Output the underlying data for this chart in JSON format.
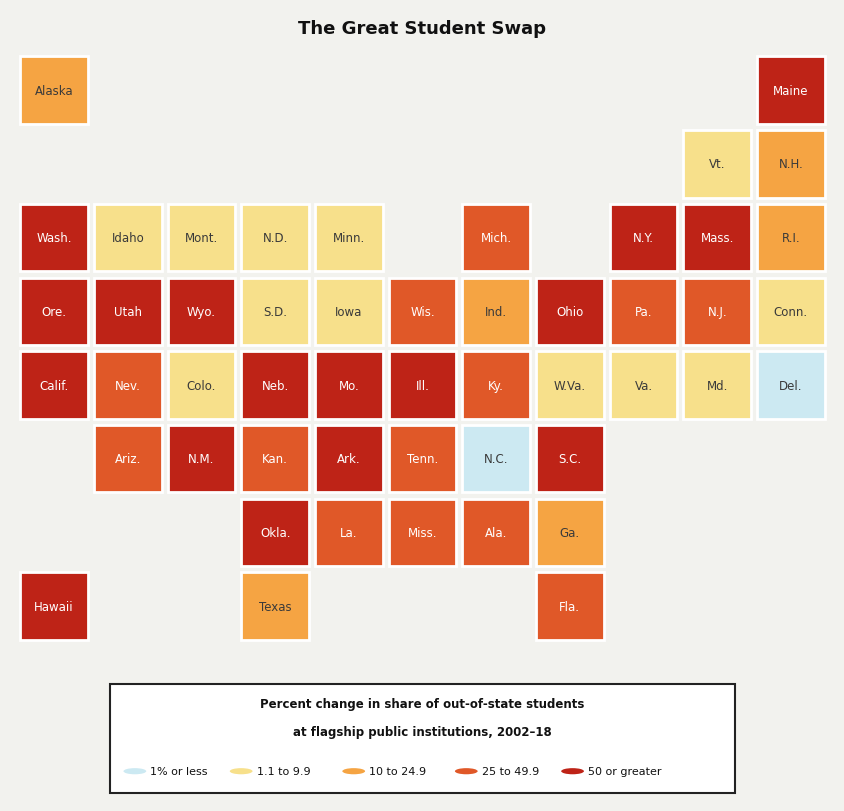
{
  "title": "The Great Student Swap",
  "title_fontsize": 13,
  "legend_title_line1": "Percent change in share of out-of-state students",
  "legend_title_line2": "at flagship public institutions, 2002–18",
  "legend_items": [
    {
      "label": "1% or less",
      "color": "#cce9f2"
    },
    {
      "label": "1.1 to 9.9",
      "color": "#f7e08b"
    },
    {
      "label": "10 to 24.9",
      "color": "#f5a443"
    },
    {
      "label": "25 to 49.9",
      "color": "#e05828"
    },
    {
      "label": "50 or greater",
      "color": "#be2317"
    }
  ],
  "background_color": "#f2f2ee",
  "states": [
    {
      "name": "Alaska",
      "col": 0,
      "row": 1,
      "color": "#f5a443"
    },
    {
      "name": "Maine",
      "col": 10,
      "row": 1,
      "color": "#be2317"
    },
    {
      "name": "Vt.",
      "col": 9,
      "row": 2,
      "color": "#f7e08b"
    },
    {
      "name": "N.H.",
      "col": 10,
      "row": 2,
      "color": "#f5a443"
    },
    {
      "name": "Wash.",
      "col": 0,
      "row": 3,
      "color": "#be2317"
    },
    {
      "name": "Idaho",
      "col": 1,
      "row": 3,
      "color": "#f7e08b"
    },
    {
      "name": "Mont.",
      "col": 2,
      "row": 3,
      "color": "#f7e08b"
    },
    {
      "name": "N.D.",
      "col": 3,
      "row": 3,
      "color": "#f7e08b"
    },
    {
      "name": "Minn.",
      "col": 4,
      "row": 3,
      "color": "#f7e08b"
    },
    {
      "name": "Mich.",
      "col": 6,
      "row": 3,
      "color": "#e05828"
    },
    {
      "name": "N.Y.",
      "col": 8,
      "row": 3,
      "color": "#be2317"
    },
    {
      "name": "Mass.",
      "col": 9,
      "row": 3,
      "color": "#be2317"
    },
    {
      "name": "R.I.",
      "col": 10,
      "row": 3,
      "color": "#f5a443"
    },
    {
      "name": "Ore.",
      "col": 0,
      "row": 4,
      "color": "#be2317"
    },
    {
      "name": "Utah",
      "col": 1,
      "row": 4,
      "color": "#be2317"
    },
    {
      "name": "Wyo.",
      "col": 2,
      "row": 4,
      "color": "#be2317"
    },
    {
      "name": "S.D.",
      "col": 3,
      "row": 4,
      "color": "#f7e08b"
    },
    {
      "name": "Iowa",
      "col": 4,
      "row": 4,
      "color": "#f7e08b"
    },
    {
      "name": "Wis.",
      "col": 5,
      "row": 4,
      "color": "#e05828"
    },
    {
      "name": "Ind.",
      "col": 6,
      "row": 4,
      "color": "#f5a443"
    },
    {
      "name": "Ohio",
      "col": 7,
      "row": 4,
      "color": "#be2317"
    },
    {
      "name": "Pa.",
      "col": 8,
      "row": 4,
      "color": "#e05828"
    },
    {
      "name": "N.J.",
      "col": 9,
      "row": 4,
      "color": "#e05828"
    },
    {
      "name": "Conn.",
      "col": 10,
      "row": 4,
      "color": "#f7e08b"
    },
    {
      "name": "Calif.",
      "col": 0,
      "row": 5,
      "color": "#be2317"
    },
    {
      "name": "Nev.",
      "col": 1,
      "row": 5,
      "color": "#e05828"
    },
    {
      "name": "Colo.",
      "col": 2,
      "row": 5,
      "color": "#f7e08b"
    },
    {
      "name": "Neb.",
      "col": 3,
      "row": 5,
      "color": "#be2317"
    },
    {
      "name": "Mo.",
      "col": 4,
      "row": 5,
      "color": "#be2317"
    },
    {
      "name": "Ill.",
      "col": 5,
      "row": 5,
      "color": "#be2317"
    },
    {
      "name": "Ky.",
      "col": 6,
      "row": 5,
      "color": "#e05828"
    },
    {
      "name": "W.Va.",
      "col": 7,
      "row": 5,
      "color": "#f7e08b"
    },
    {
      "name": "Va.",
      "col": 8,
      "row": 5,
      "color": "#f7e08b"
    },
    {
      "name": "Md.",
      "col": 9,
      "row": 5,
      "color": "#f7e08b"
    },
    {
      "name": "Del.",
      "col": 10,
      "row": 5,
      "color": "#cce9f2"
    },
    {
      "name": "Ariz.",
      "col": 1,
      "row": 6,
      "color": "#e05828"
    },
    {
      "name": "N.M.",
      "col": 2,
      "row": 6,
      "color": "#be2317"
    },
    {
      "name": "Kan.",
      "col": 3,
      "row": 6,
      "color": "#e05828"
    },
    {
      "name": "Ark.",
      "col": 4,
      "row": 6,
      "color": "#be2317"
    },
    {
      "name": "Tenn.",
      "col": 5,
      "row": 6,
      "color": "#e05828"
    },
    {
      "name": "N.C.",
      "col": 6,
      "row": 6,
      "color": "#cce9f2"
    },
    {
      "name": "S.C.",
      "col": 7,
      "row": 6,
      "color": "#be2317"
    },
    {
      "name": "Okla.",
      "col": 3,
      "row": 7,
      "color": "#be2317"
    },
    {
      "name": "La.",
      "col": 4,
      "row": 7,
      "color": "#e05828"
    },
    {
      "name": "Miss.",
      "col": 5,
      "row": 7,
      "color": "#e05828"
    },
    {
      "name": "Ala.",
      "col": 6,
      "row": 7,
      "color": "#e05828"
    },
    {
      "name": "Ga.",
      "col": 7,
      "row": 7,
      "color": "#f5a443"
    },
    {
      "name": "Hawaii",
      "col": 0,
      "row": 8,
      "color": "#be2317"
    },
    {
      "name": "Texas",
      "col": 3,
      "row": 8,
      "color": "#f5a443"
    },
    {
      "name": "Fla.",
      "col": 7,
      "row": 8,
      "color": "#e05828"
    }
  ]
}
